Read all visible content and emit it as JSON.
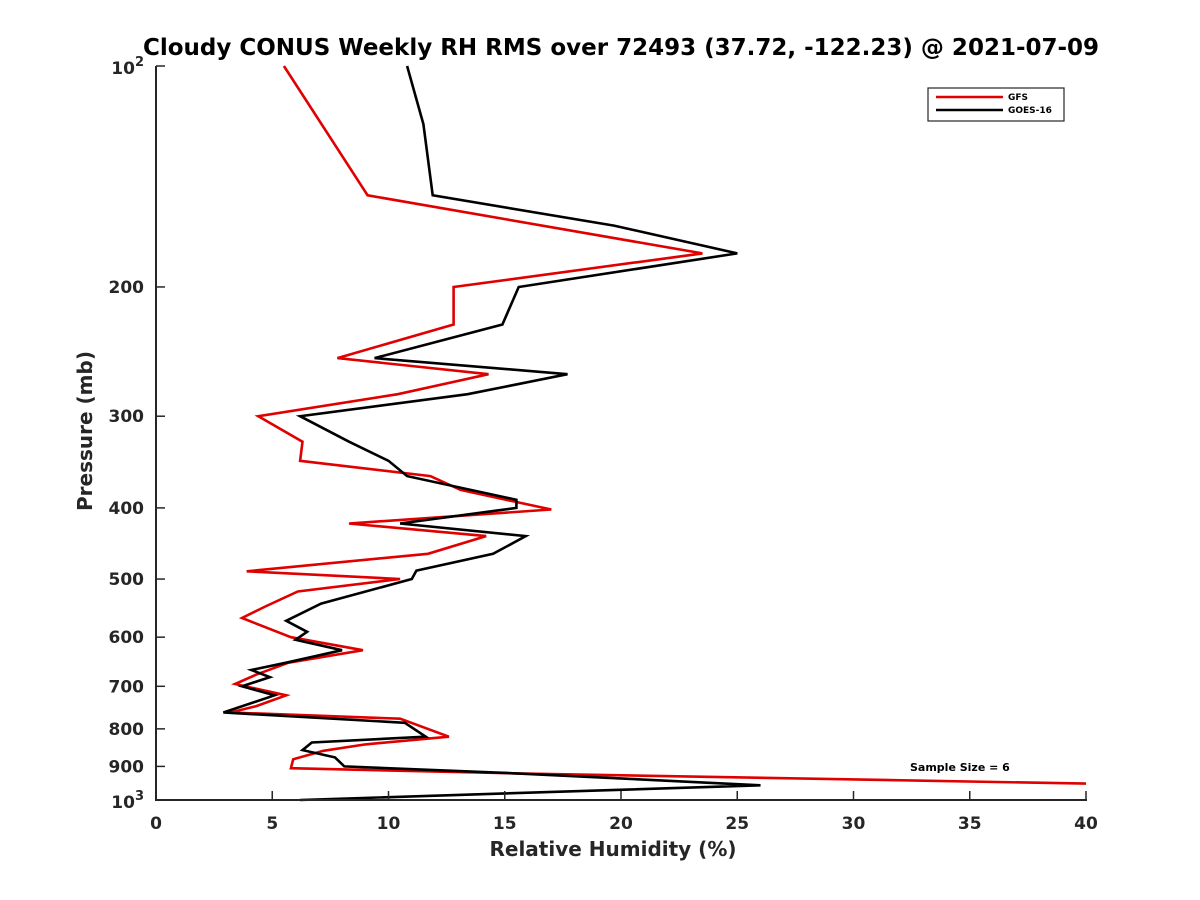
{
  "chart_data": {
    "type": "line",
    "title": "Cloudy CONUS Weekly RH RMS over 72493 (37.72, -122.23) @ 2021-07-09",
    "xlabel": "Relative Humidity (%)",
    "ylabel": "Pressure (mb)",
    "xlim": [
      0,
      40
    ],
    "ylim": [
      100,
      1000
    ],
    "y_scale": "log",
    "y_reversed": true,
    "x_ticks": [
      "0",
      "5",
      "10",
      "15",
      "20",
      "25",
      "30",
      "35",
      "40"
    ],
    "y_ticks": [
      {
        "value": 100,
        "base": "10",
        "exp": "2"
      },
      {
        "value": 200,
        "label": "200"
      },
      {
        "value": 300,
        "label": "300"
      },
      {
        "value": 400,
        "label": "400"
      },
      {
        "value": 500,
        "label": "500"
      },
      {
        "value": 600,
        "label": "600"
      },
      {
        "value": 700,
        "label": "700"
      },
      {
        "value": 800,
        "label": "800"
      },
      {
        "value": 900,
        "label": "900"
      },
      {
        "value": 1000,
        "base": "10",
        "exp": "3"
      }
    ],
    "grid": false,
    "legend_position": "top-right",
    "annotation": "Sample Size = 6",
    "series": [
      {
        "name": "GFS",
        "color": "#e00000",
        "points": [
          [
            5.5,
            100
          ],
          [
            9.1,
            150
          ],
          [
            23.5,
            180
          ],
          [
            12.8,
            200
          ],
          [
            12.8,
            225
          ],
          [
            7.8,
            250
          ],
          [
            14.3,
            263
          ],
          [
            10.4,
            280
          ],
          [
            4.4,
            300
          ],
          [
            6.3,
            325
          ],
          [
            6.2,
            345
          ],
          [
            11.8,
            362
          ],
          [
            13.1,
            378
          ],
          [
            17.0,
            402
          ],
          [
            8.3,
            420
          ],
          [
            14.2,
            437
          ],
          [
            11.7,
            462
          ],
          [
            3.9,
            488
          ],
          [
            10.5,
            500
          ],
          [
            6.1,
            520
          ],
          [
            4.7,
            545
          ],
          [
            3.7,
            565
          ],
          [
            5.8,
            600
          ],
          [
            8.9,
            625
          ],
          [
            5.7,
            650
          ],
          [
            4.3,
            675
          ],
          [
            3.4,
            695
          ],
          [
            5.6,
            720
          ],
          [
            4.3,
            745
          ],
          [
            3.2,
            760
          ],
          [
            10.5,
            775
          ],
          [
            12.6,
            820
          ],
          [
            9.0,
            840
          ],
          [
            7.2,
            857
          ],
          [
            5.9,
            880
          ],
          [
            5.8,
            905
          ],
          [
            15.5,
            920
          ],
          [
            40.0,
            950
          ]
        ]
      },
      {
        "name": "GOES-16",
        "color": "#000000",
        "points": [
          [
            10.8,
            100
          ],
          [
            11.5,
            120
          ],
          [
            11.9,
            150
          ],
          [
            19.7,
            165
          ],
          [
            25.0,
            180
          ],
          [
            15.6,
            200
          ],
          [
            14.9,
            225
          ],
          [
            9.4,
            250
          ],
          [
            17.7,
            263
          ],
          [
            13.4,
            280
          ],
          [
            6.2,
            300
          ],
          [
            8.3,
            325
          ],
          [
            10.0,
            345
          ],
          [
            10.8,
            362
          ],
          [
            15.5,
            390
          ],
          [
            15.5,
            400
          ],
          [
            10.5,
            420
          ],
          [
            15.9,
            437
          ],
          [
            14.5,
            462
          ],
          [
            11.2,
            487
          ],
          [
            11.0,
            500
          ],
          [
            7.1,
            540
          ],
          [
            5.6,
            570
          ],
          [
            6.5,
            590
          ],
          [
            6.0,
            605
          ],
          [
            8.0,
            625
          ],
          [
            5.6,
            650
          ],
          [
            4.1,
            665
          ],
          [
            4.9,
            680
          ],
          [
            3.7,
            700
          ],
          [
            5.1,
            720
          ],
          [
            2.9,
            760
          ],
          [
            10.7,
            785
          ],
          [
            11.6,
            820
          ],
          [
            6.7,
            835
          ],
          [
            6.3,
            855
          ],
          [
            7.7,
            875
          ],
          [
            8.1,
            900
          ],
          [
            15.5,
            920
          ],
          [
            26.0,
            955
          ],
          [
            6.2,
            1000
          ]
        ]
      }
    ]
  }
}
